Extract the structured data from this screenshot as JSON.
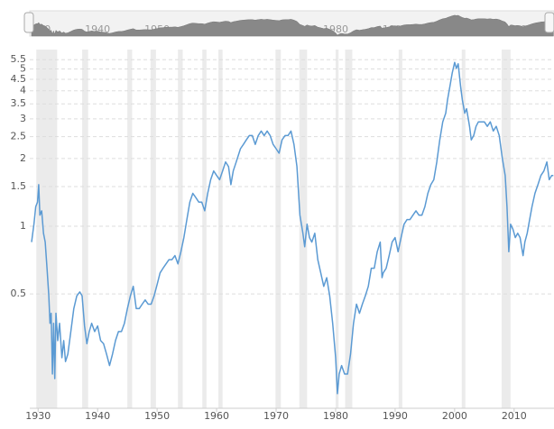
{
  "chart_data": {
    "type": "line",
    "log_y": true,
    "color": "#5b9ad3",
    "grid": true,
    "xlim": [
      1928.6,
      2016.7
    ],
    "ylim": [
      0.155,
      6.1
    ],
    "xticks": [
      1930,
      1940,
      1950,
      1960,
      1970,
      1980,
      1990,
      2000,
      2010
    ],
    "yticks": [
      0.5,
      1,
      1.5,
      2,
      2.5,
      3,
      3.5,
      4,
      4.5,
      5,
      5.5
    ],
    "shaded_ranges": [
      [
        1929.7,
        1933.2
      ],
      [
        1937.4,
        1938.4
      ],
      [
        1945.0,
        1945.8
      ],
      [
        1948.9,
        1949.8
      ],
      [
        1953.5,
        1954.3
      ],
      [
        1957.6,
        1958.3
      ],
      [
        1960.3,
        1961.0
      ],
      [
        1969.9,
        1970.8
      ],
      [
        1973.9,
        1975.2
      ],
      [
        1980.0,
        1980.5
      ],
      [
        1981.6,
        1982.8
      ],
      [
        1990.6,
        1991.2
      ],
      [
        2001.2,
        2001.8
      ],
      [
        2007.9,
        2009.4
      ]
    ],
    "x": [
      1928.9,
      1929.3,
      1929.6,
      1929.9,
      1930.1,
      1930.3,
      1930.6,
      1930.9,
      1931.2,
      1931.5,
      1931.8,
      1932.0,
      1932.2,
      1932.4,
      1932.6,
      1932.8,
      1933.0,
      1933.3,
      1933.6,
      1934.0,
      1934.3,
      1934.6,
      1935.0,
      1935.5,
      1936.0,
      1936.5,
      1937.0,
      1937.4,
      1937.8,
      1938.2,
      1938.6,
      1939.0,
      1939.5,
      1940.0,
      1940.5,
      1941.0,
      1941.5,
      1942.0,
      1942.5,
      1943.0,
      1943.5,
      1944.0,
      1944.5,
      1945.0,
      1945.5,
      1946.0,
      1946.5,
      1947.0,
      1947.5,
      1948.0,
      1948.5,
      1949.0,
      1949.5,
      1950.0,
      1950.5,
      1951.0,
      1951.5,
      1952.0,
      1952.5,
      1953.0,
      1953.5,
      1954.0,
      1954.5,
      1955.0,
      1955.5,
      1956.0,
      1956.5,
      1957.0,
      1957.5,
      1958.0,
      1958.5,
      1959.0,
      1959.5,
      1960.0,
      1960.5,
      1961.0,
      1961.5,
      1962.0,
      1962.4,
      1962.8,
      1963.3,
      1964.0,
      1964.5,
      1965.0,
      1965.5,
      1966.0,
      1966.5,
      1967.0,
      1967.5,
      1968.0,
      1968.5,
      1969.0,
      1969.5,
      1970.0,
      1970.5,
      1971.0,
      1971.5,
      1972.0,
      1972.5,
      1973.0,
      1973.5,
      1974.0,
      1974.5,
      1974.8,
      1975.2,
      1975.6,
      1976.0,
      1976.5,
      1977.0,
      1977.5,
      1978.0,
      1978.5,
      1979.0,
      1979.5,
      1980.0,
      1980.3,
      1980.6,
      1981.0,
      1981.5,
      1982.0,
      1982.5,
      1983.0,
      1983.5,
      1984.0,
      1984.5,
      1985.0,
      1985.5,
      1986.0,
      1986.5,
      1987.0,
      1987.5,
      1987.8,
      1988.0,
      1988.5,
      1989.0,
      1989.5,
      1990.0,
      1990.5,
      1991.0,
      1991.5,
      1992.0,
      1992.5,
      1993.0,
      1993.5,
      1994.0,
      1994.5,
      1995.0,
      1995.5,
      1996.0,
      1996.5,
      1997.0,
      1997.5,
      1998.0,
      1998.5,
      1998.8,
      1999.2,
      1999.6,
      2000.0,
      2000.3,
      2000.6,
      2001.0,
      2001.3,
      2001.7,
      2002.0,
      2002.5,
      2002.8,
      2003.2,
      2003.6,
      2004.0,
      2004.5,
      2005.0,
      2005.5,
      2006.0,
      2006.5,
      2007.0,
      2007.5,
      2008.0,
      2008.5,
      2008.8,
      2009.1,
      2009.4,
      2009.8,
      2010.2,
      2010.6,
      2011.0,
      2011.5,
      2011.8,
      2012.2,
      2012.6,
      2013.0,
      2013.5,
      2014.0,
      2014.5,
      2015.0,
      2015.5,
      2015.9,
      2016.3,
      2016.6
    ],
    "values": [
      0.85,
      1.02,
      1.22,
      1.28,
      1.53,
      1.12,
      1.17,
      0.93,
      0.85,
      0.65,
      0.49,
      0.37,
      0.41,
      0.22,
      0.37,
      0.21,
      0.41,
      0.31,
      0.37,
      0.26,
      0.31,
      0.25,
      0.27,
      0.34,
      0.43,
      0.49,
      0.51,
      0.49,
      0.36,
      0.3,
      0.34,
      0.37,
      0.34,
      0.36,
      0.31,
      0.3,
      0.27,
      0.24,
      0.27,
      0.31,
      0.34,
      0.34,
      0.37,
      0.43,
      0.49,
      0.54,
      0.43,
      0.43,
      0.45,
      0.47,
      0.45,
      0.45,
      0.49,
      0.55,
      0.62,
      0.65,
      0.68,
      0.71,
      0.71,
      0.74,
      0.68,
      0.77,
      0.89,
      1.07,
      1.28,
      1.4,
      1.34,
      1.28,
      1.28,
      1.17,
      1.4,
      1.61,
      1.76,
      1.68,
      1.61,
      1.76,
      1.93,
      1.84,
      1.53,
      1.76,
      1.93,
      2.21,
      2.31,
      2.42,
      2.53,
      2.53,
      2.31,
      2.53,
      2.65,
      2.53,
      2.65,
      2.53,
      2.31,
      2.21,
      2.11,
      2.42,
      2.53,
      2.53,
      2.65,
      2.31,
      1.84,
      1.12,
      0.93,
      0.81,
      1.02,
      0.89,
      0.85,
      0.93,
      0.71,
      0.62,
      0.54,
      0.59,
      0.49,
      0.37,
      0.26,
      0.18,
      0.22,
      0.24,
      0.22,
      0.22,
      0.27,
      0.37,
      0.45,
      0.41,
      0.45,
      0.49,
      0.54,
      0.65,
      0.65,
      0.77,
      0.85,
      0.59,
      0.62,
      0.65,
      0.74,
      0.85,
      0.89,
      0.77,
      0.89,
      1.02,
      1.07,
      1.07,
      1.12,
      1.17,
      1.12,
      1.12,
      1.22,
      1.4,
      1.53,
      1.61,
      1.93,
      2.42,
      2.91,
      3.18,
      3.65,
      4.18,
      4.8,
      5.35,
      5.03,
      5.27,
      4.18,
      3.65,
      3.18,
      3.33,
      2.78,
      2.42,
      2.53,
      2.78,
      2.91,
      2.91,
      2.91,
      2.78,
      2.91,
      2.65,
      2.78,
      2.53,
      2.02,
      1.68,
      1.22,
      0.77,
      1.02,
      0.97,
      0.89,
      0.93,
      0.89,
      0.74,
      0.85,
      0.93,
      1.07,
      1.22,
      1.4,
      1.53,
      1.68,
      1.76,
      1.93,
      1.61,
      1.68,
      1.68
    ]
  }
}
